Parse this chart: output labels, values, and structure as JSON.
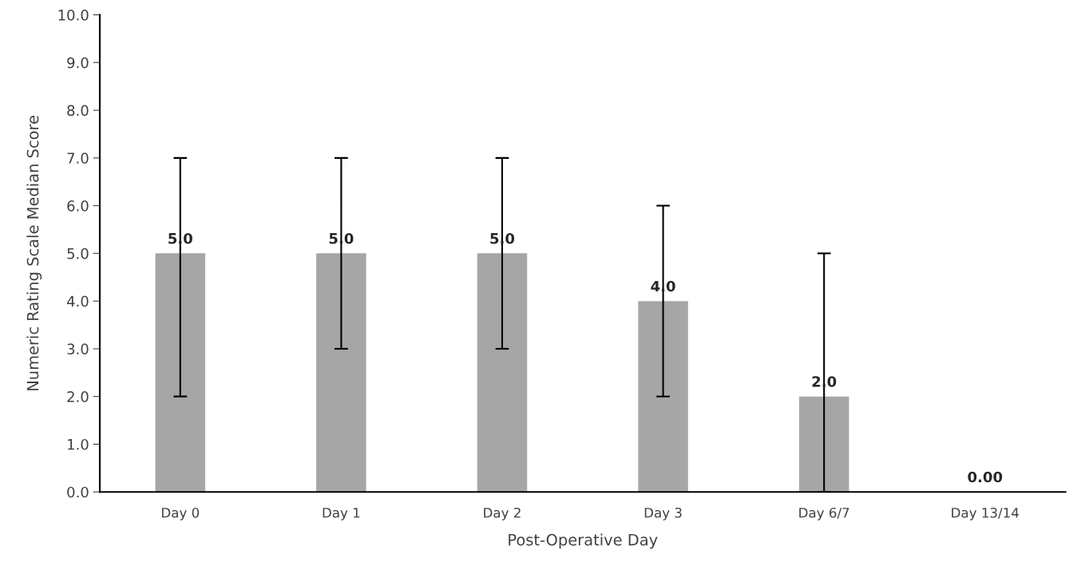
{
  "chart_data": {
    "type": "bar",
    "xlabel": "Post-Operative Day",
    "ylabel": "Numeric Rating Scale Median Score",
    "categories": [
      "Day 0",
      "Day 1",
      "Day 2",
      "Day 3",
      "Day 6/7",
      "Day 13/14"
    ],
    "values": [
      5,
      5,
      5,
      4,
      2,
      0
    ],
    "errors": [
      [
        2,
        7
      ],
      [
        3,
        7
      ],
      [
        3,
        7
      ],
      [
        2,
        6
      ],
      [
        0,
        5
      ],
      null
    ],
    "value_labels": [
      "5.0",
      "5.0",
      "5.0",
      "4.0",
      "2.0",
      "0.00"
    ],
    "color": "#a6a6a6",
    "ylim": [
      0,
      10
    ],
    "yticks": [
      {
        "value": 0,
        "label": "0.0"
      },
      {
        "value": 1,
        "label": "1.0"
      },
      {
        "value": 2,
        "label": "2.0"
      },
      {
        "value": 3,
        "label": "3.0"
      },
      {
        "value": 4,
        "label": "4.0"
      },
      {
        "value": 5,
        "label": "5.0"
      },
      {
        "value": 6,
        "label": "6.0"
      },
      {
        "value": 7,
        "label": "7.0"
      },
      {
        "value": 8,
        "label": "8.0"
      },
      {
        "value": 9,
        "label": "9.0"
      },
      {
        "value": 10,
        "label": "10.0"
      }
    ],
    "grid": false,
    "legend": false
  }
}
